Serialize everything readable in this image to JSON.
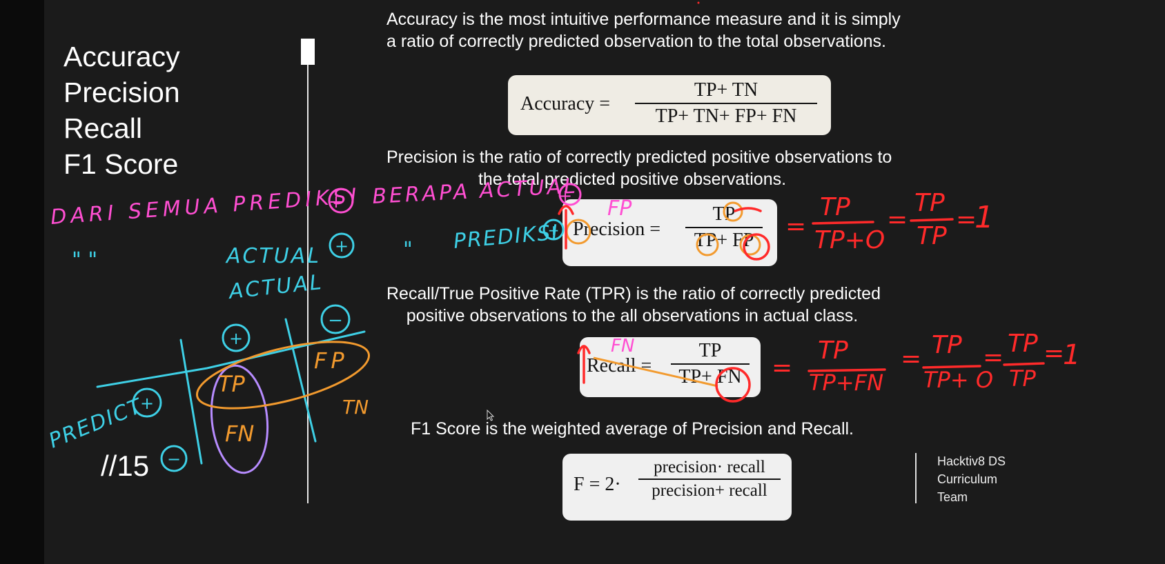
{
  "slide": {
    "titles": [
      "Accuracy",
      "Precision",
      "Recall",
      "F1 Score"
    ],
    "page_number": "//15",
    "accuracy_desc": [
      "Accuracy is the most intuitive performance measure and it is simply",
      "a ratio of correctly predicted observation to the total observations."
    ],
    "accuracy_formula": {
      "label": "Accuracy =",
      "numerator": "TP+ TN",
      "denominator": "TP+ TN+ FP+ FN"
    },
    "precision_desc": [
      "Precision is the ratio of correctly predicted positive observations to",
      "the total predicted positive observations."
    ],
    "precision_formula": {
      "label": "Precision =",
      "numerator": "TP",
      "denominator": "TP+ FP"
    },
    "recall_desc": [
      "Recall/True Positive Rate (TPR) is the ratio of correctly predicted",
      "positive observations to the all observations in actual class."
    ],
    "recall_formula": {
      "label": "Recall =",
      "numerator": "TP",
      "denominator": "TP+ FN"
    },
    "f1_desc": "F1 Score is the weighted average of Precision and Recall.",
    "f1_formula": {
      "label": "F = 2·",
      "numerator": "precision· recall",
      "denominator": "precision+ recall"
    },
    "credit": [
      "Hacktiv8 DS",
      "Curriculum",
      "Team"
    ]
  },
  "annotations": {
    "pink_line": "DARI SEMUA PREDIKSI",
    "pink_line_2": "BERAPA ACTUAL",
    "cyan_quotes": "\"        \"",
    "cyan_actual": "ACTUAL",
    "cyan_prediksi": "PREDIKSI",
    "cyan_actual_2": "ACTUAL",
    "cyan_predict": "PREDICT",
    "plus_sign": "+",
    "minus_sign": "−",
    "matrix": {
      "tp": "TP",
      "fp": "FP",
      "fn": "FN",
      "tn": "TN"
    },
    "fp_note": "FP",
    "fn_note": "FN",
    "precision_calc": {
      "eq": "=",
      "n1": "TP",
      "d1": "TP+O",
      "eq2": "=",
      "n2": "TP",
      "d2": "TP",
      "eq3": "=",
      "res": "1"
    },
    "recall_calc": {
      "eq": "=",
      "n1": "TP",
      "d1": "TP+FN",
      "eq2": "=",
      "n2": "TP",
      "d2": "TP+ O",
      "eq3": "=",
      "n3": "TP",
      "d3": "TP",
      "eq4": "=",
      "res": "1"
    },
    "colors": {
      "pink": "#ff4fd2",
      "cyan": "#3ed0e6",
      "orange": "#f29a2e",
      "red": "#ff2a2a",
      "purple": "#b78cff"
    }
  }
}
